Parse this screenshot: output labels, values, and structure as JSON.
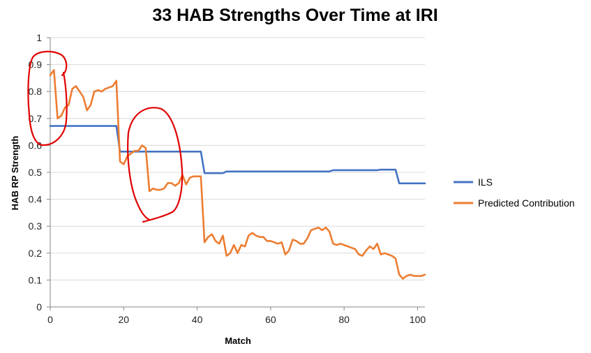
{
  "chart_data": {
    "type": "line",
    "title": "33 HAB Strengths Over Time at IRI",
    "xlabel": "Match",
    "ylabel": "HAB RP Strength",
    "xlim": [
      0,
      102
    ],
    "ylim": [
      0,
      1
    ],
    "x_ticks": [
      "0",
      "20",
      "40",
      "60",
      "80",
      "100"
    ],
    "x_tick_values": [
      0,
      20,
      40,
      60,
      80,
      100
    ],
    "y_ticks": [
      "0",
      "0.1",
      "0.2",
      "0.3",
      "0.4",
      "0.5",
      "0.6",
      "0.7",
      "0.8",
      "0.9",
      "1"
    ],
    "y_tick_values": [
      0,
      0.1,
      0.2,
      0.3,
      0.4,
      0.5,
      0.6,
      0.7,
      0.8,
      0.9,
      1
    ],
    "grid": "horizontal",
    "legend": "right",
    "series": [
      {
        "name": "ILS",
        "color": "#4472C4",
        "x": [
          0,
          18,
          19,
          41,
          42,
          47,
          48,
          76,
          77,
          89,
          90,
          94,
          95,
          102
        ],
        "y": [
          0.672,
          0.672,
          0.577,
          0.577,
          0.497,
          0.497,
          0.503,
          0.503,
          0.508,
          0.508,
          0.51,
          0.51,
          0.459,
          0.459
        ]
      },
      {
        "name": "Predicted Contribution",
        "color": "#ED7D31",
        "x": [
          0,
          1,
          2,
          3,
          4,
          5,
          6,
          7,
          8,
          9,
          10,
          11,
          12,
          13,
          14,
          15,
          16,
          17,
          18,
          19,
          20,
          21,
          22,
          23,
          24,
          25,
          26,
          27,
          28,
          29,
          30,
          31,
          32,
          33,
          34,
          35,
          36,
          37,
          38,
          39,
          40,
          41,
          42,
          43,
          44,
          45,
          46,
          47,
          48,
          49,
          50,
          51,
          52,
          53,
          54,
          55,
          56,
          57,
          58,
          59,
          60,
          61,
          62,
          63,
          64,
          65,
          66,
          67,
          68,
          69,
          70,
          71,
          72,
          73,
          74,
          75,
          76,
          77,
          78,
          79,
          80,
          81,
          82,
          83,
          84,
          85,
          86,
          87,
          88,
          89,
          90,
          91,
          92,
          93,
          94,
          95,
          96,
          97,
          98,
          99,
          100,
          101,
          102
        ],
        "y": [
          0.86,
          0.88,
          0.7,
          0.71,
          0.74,
          0.75,
          0.81,
          0.82,
          0.8,
          0.78,
          0.73,
          0.75,
          0.8,
          0.805,
          0.8,
          0.81,
          0.815,
          0.82,
          0.84,
          0.54,
          0.53,
          0.56,
          0.57,
          0.58,
          0.58,
          0.6,
          0.59,
          0.43,
          0.44,
          0.435,
          0.435,
          0.44,
          0.46,
          0.46,
          0.45,
          0.46,
          0.49,
          0.455,
          0.48,
          0.485,
          0.485,
          0.485,
          0.24,
          0.26,
          0.27,
          0.245,
          0.235,
          0.265,
          0.19,
          0.2,
          0.23,
          0.2,
          0.23,
          0.225,
          0.265,
          0.275,
          0.265,
          0.26,
          0.26,
          0.245,
          0.245,
          0.24,
          0.235,
          0.24,
          0.195,
          0.21,
          0.25,
          0.245,
          0.235,
          0.235,
          0.255,
          0.285,
          0.29,
          0.295,
          0.285,
          0.295,
          0.28,
          0.235,
          0.23,
          0.235,
          0.23,
          0.225,
          0.22,
          0.215,
          0.195,
          0.19,
          0.21,
          0.225,
          0.215,
          0.235,
          0.195,
          0.2,
          0.195,
          0.19,
          0.18,
          0.12,
          0.105,
          0.115,
          0.12,
          0.115,
          0.115,
          0.115,
          0.12
        ]
      }
    ]
  },
  "annotations": [
    {
      "name": "circle-annotation-1",
      "color": "#E00000"
    },
    {
      "name": "circle-annotation-2",
      "color": "#E00000"
    }
  ]
}
